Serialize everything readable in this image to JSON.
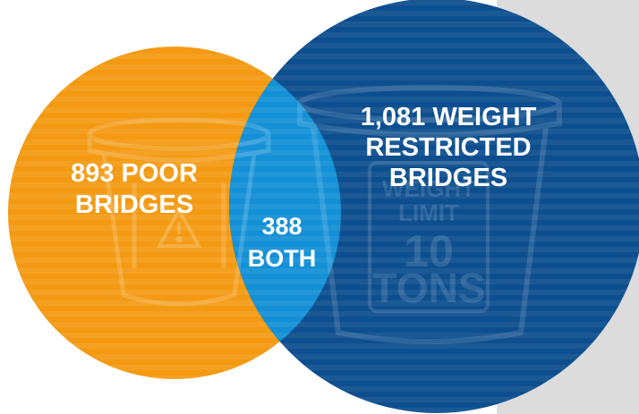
{
  "diagram": {
    "type": "venn",
    "left_circle": {
      "line1": "893 POOR",
      "line2": "BRIDGES",
      "color": "#f39a12"
    },
    "right_circle": {
      "line1": "1,081 WEIGHT",
      "line2": "RESTRICTED",
      "line3": "BRIDGES",
      "color": "#0d4f8e"
    },
    "overlap": {
      "line1": "388",
      "line2": "BOTH",
      "color": "#1390d6"
    },
    "background_panel_color": "#dcdcdd",
    "watermark_sign": {
      "line1": "WEIGHT",
      "line2": "LIMIT",
      "line3": "10",
      "line4": "TONS"
    },
    "icons": [
      "bucket-icon",
      "warning-icon",
      "weight-limit-sign-icon"
    ]
  }
}
